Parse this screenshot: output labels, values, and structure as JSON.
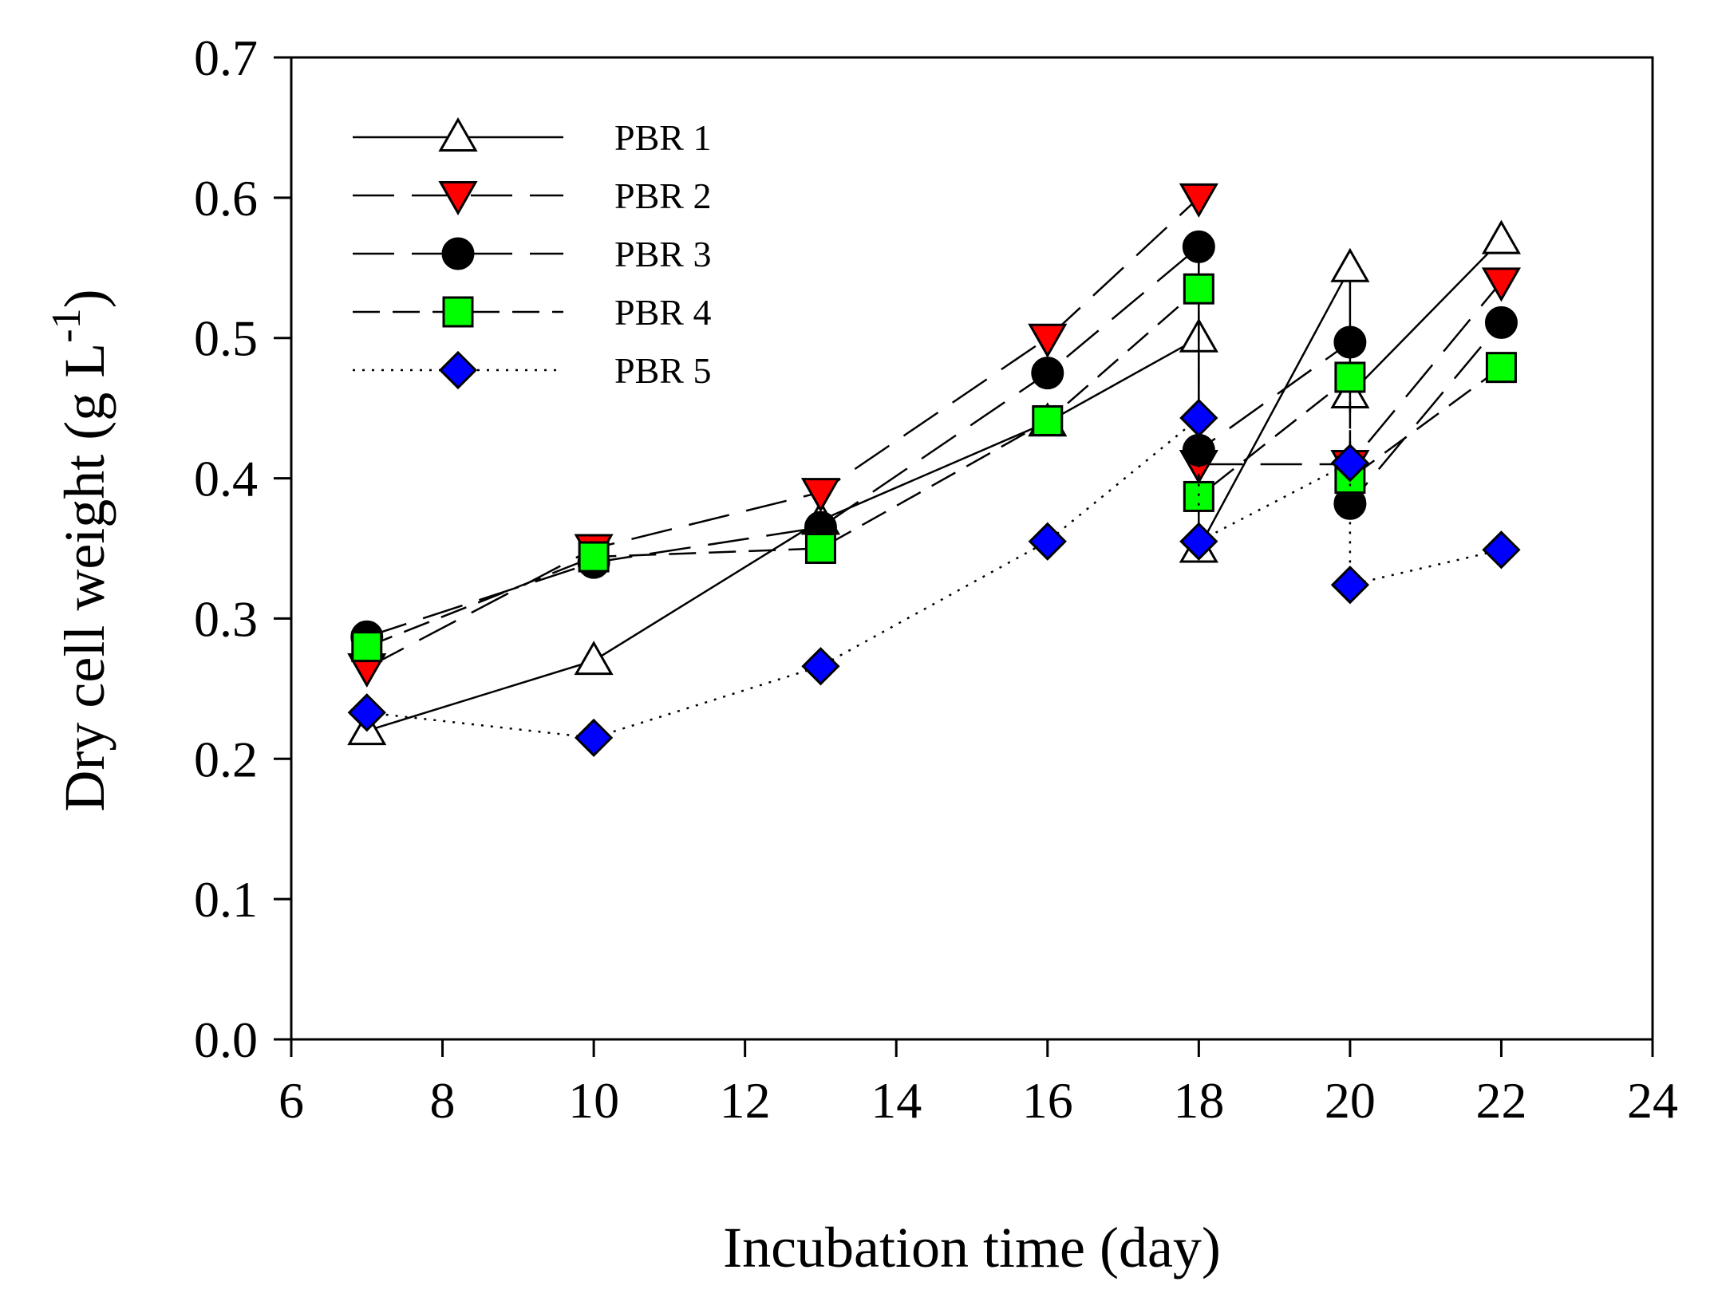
{
  "chart_data": {
    "type": "line",
    "title": "",
    "xlabel": "Incubation time (day)",
    "ylabel_main": "Dry cell weight (g L",
    "ylabel_sup": "-1",
    "ylabel_close": ")",
    "xlim": [
      6,
      24
    ],
    "ylim": [
      0,
      0.7
    ],
    "xticks": [
      6,
      8,
      10,
      12,
      14,
      16,
      18,
      20,
      22,
      24
    ],
    "yticks": [
      0.0,
      0.1,
      0.2,
      0.3,
      0.4,
      0.5,
      0.6,
      0.7
    ],
    "xtick_labels": [
      "6",
      "8",
      "10",
      "12",
      "14",
      "16",
      "18",
      "20",
      "22",
      "24"
    ],
    "ytick_labels": [
      "0.0",
      "0.1",
      "0.2",
      "0.3",
      "0.4",
      "0.5",
      "0.6",
      "0.7"
    ],
    "legend_position": "top-left",
    "series": [
      {
        "name": "PBR 1",
        "marker": "triangle-up",
        "fill": "#ffffff",
        "line": "solid",
        "points": [
          [
            7,
            0.22
          ],
          [
            10,
            0.27
          ],
          [
            13,
            0.37
          ],
          [
            16,
            0.44
          ],
          [
            18,
            0.5
          ],
          [
            18,
            0.35
          ],
          [
            20,
            0.55
          ],
          [
            20,
            0.46
          ],
          [
            22,
            0.57
          ]
        ]
      },
      {
        "name": "PBR 2",
        "marker": "triangle-down",
        "fill": "#ff0000",
        "line": "long-dash",
        "points": [
          [
            7,
            0.265
          ],
          [
            10,
            0.35
          ],
          [
            13,
            0.39
          ],
          [
            16,
            0.5
          ],
          [
            18,
            0.6
          ],
          [
            18,
            0.41
          ],
          [
            20,
            0.41
          ],
          [
            22,
            0.54
          ]
        ]
      },
      {
        "name": "PBR 3",
        "marker": "circle",
        "fill": "#000000",
        "line": "long-dash",
        "points": [
          [
            7,
            0.287
          ],
          [
            10,
            0.34
          ],
          [
            13,
            0.365
          ],
          [
            16,
            0.475
          ],
          [
            18,
            0.565
          ],
          [
            18,
            0.42
          ],
          [
            20,
            0.497
          ],
          [
            20,
            0.382
          ],
          [
            22,
            0.511
          ]
        ]
      },
      {
        "name": "PBR 4",
        "marker": "square",
        "fill": "#00ff00",
        "line": "medium-dash",
        "points": [
          [
            7,
            0.28
          ],
          [
            10,
            0.344
          ],
          [
            13,
            0.35
          ],
          [
            16,
            0.441
          ],
          [
            18,
            0.535
          ],
          [
            18,
            0.387
          ],
          [
            20,
            0.472
          ],
          [
            20,
            0.4
          ],
          [
            22,
            0.479
          ]
        ]
      },
      {
        "name": "PBR 5",
        "marker": "diamond",
        "fill": "#0000ff",
        "line": "dotted",
        "points": [
          [
            7,
            0.233
          ],
          [
            10,
            0.215
          ],
          [
            13,
            0.266
          ],
          [
            16,
            0.355
          ],
          [
            18,
            0.443
          ],
          [
            18,
            0.355
          ],
          [
            20,
            0.411
          ],
          [
            20,
            0.324
          ],
          [
            22,
            0.349
          ]
        ]
      }
    ]
  }
}
